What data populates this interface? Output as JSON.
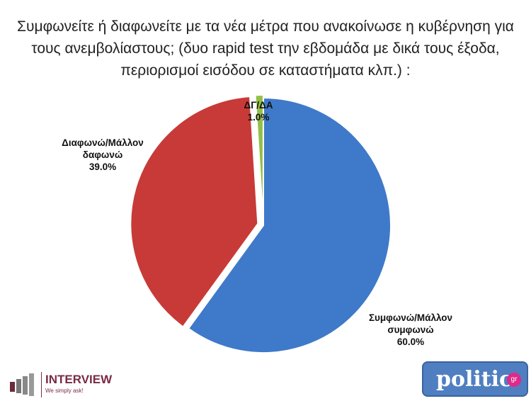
{
  "chart_data": {
    "type": "pie",
    "title": "Συμφωνείτε ή διαφωνείτε με τα νέα μέτρα που ανακοίνωσε  η κυβέρνηση για τους ανεμβολίαστους; (δυο rapid test την εβδομάδα με δικά τους έξοδα, περιορισμοί εισόδου σε καταστήματα κλπ.) :",
    "slices": [
      {
        "label": "Συμφωνώ/Μάλλον συμφωνώ",
        "value": 60.0,
        "value_label": "60.0%",
        "color": "#3f79c9"
      },
      {
        "label": "Διαφωνώ/Μάλλον δαφωνώ",
        "value": 39.0,
        "value_label": "39.0%",
        "color": "#c83a37"
      },
      {
        "label": "ΔΓ/ΔΑ",
        "value": 1.0,
        "value_label": "1.0%",
        "color": "#92c047"
      }
    ],
    "legend": "none"
  },
  "logos": {
    "left": {
      "name": "INTERVIEW",
      "tagline": "We simply ask!"
    },
    "right": {
      "name": "politic",
      "suffix": "gr"
    }
  }
}
